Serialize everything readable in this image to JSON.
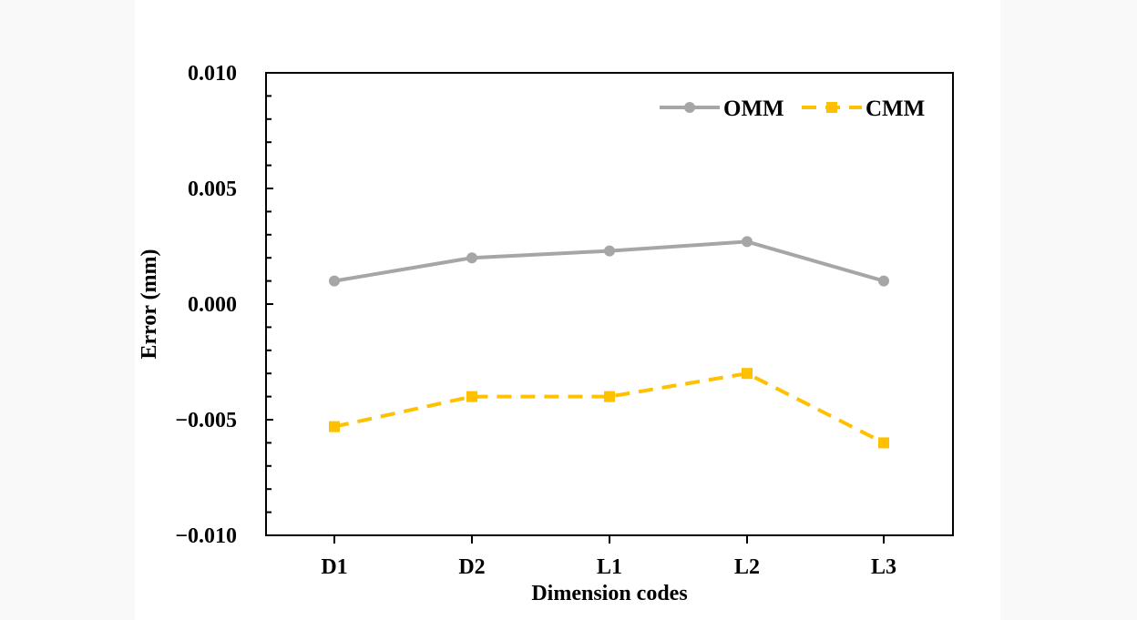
{
  "chart_data": {
    "type": "line",
    "title": "",
    "xlabel": "Dimension codes",
    "ylabel": "Error (mm)",
    "categories": [
      "D1",
      "D2",
      "L1",
      "L2",
      "L3"
    ],
    "ylim": [
      -0.01,
      0.01
    ],
    "ytick_labels": [
      "0.010",
      "0.005",
      "0.000",
      "−0.005",
      "−0.010"
    ],
    "ytick_values": [
      0.01,
      0.005,
      0.0,
      -0.005,
      -0.01
    ],
    "grid": false,
    "legend_position": "top-right",
    "series": [
      {
        "name": "OMM",
        "values": [
          0.001,
          0.002,
          0.0023,
          0.0027,
          0.001
        ],
        "color": "#a6a6a6",
        "line_style": "solid",
        "marker": "circle"
      },
      {
        "name": "CMM",
        "values": [
          -0.0053,
          -0.004,
          -0.004,
          -0.003,
          -0.006
        ],
        "color": "#ffc000",
        "line_style": "dashed",
        "marker": "square"
      }
    ]
  }
}
